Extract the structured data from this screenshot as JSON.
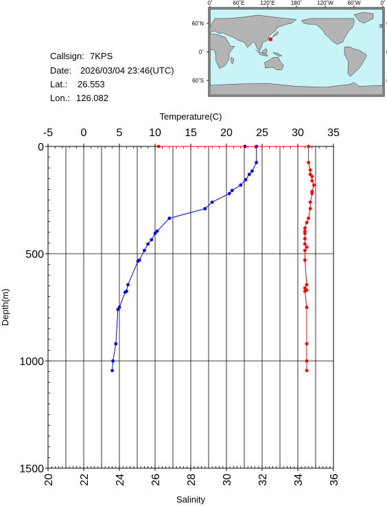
{
  "header": {
    "callsign_label": "Callsign:",
    "callsign": "7KPS",
    "date_label": "Date:",
    "date": "2026/03/04 23:46(UTC)",
    "lat_label": "Lat.:",
    "lat": "26.553",
    "lon_label": "Lon.:",
    "lon": "126.082"
  },
  "map": {
    "top_ticks": [
      "0˚",
      "60˚E",
      "120˚E",
      "180˚",
      "120˚W",
      "60˚W",
      "0˚"
    ],
    "side_ticks": [
      "60˚N",
      "0˚",
      "60˚S"
    ],
    "ocean_color": "#c8f4f8",
    "land_color": "#b4b4b4",
    "marker": {
      "lat": 26.553,
      "lon": 126.082,
      "color": "#ff0000"
    }
  },
  "chart_data": {
    "type": "line",
    "y_axis": {
      "label": "Depth(m)",
      "lim": [
        0,
        1500
      ],
      "ticks": [
        0,
        500,
        1000,
        1500
      ],
      "inverted": true
    },
    "x_axis_top": {
      "label": "Temperature(C)",
      "lim": [
        -5,
        35
      ],
      "ticks": [
        -5,
        0,
        5,
        10,
        15,
        20,
        25,
        30,
        35
      ]
    },
    "x_axis_bottom": {
      "label": "Salinity",
      "lim": [
        20,
        36
      ],
      "ticks": [
        20,
        22,
        24,
        26,
        28,
        30,
        32,
        34,
        36
      ]
    },
    "grid": true,
    "series": [
      {
        "axis": "top",
        "color": "#0000ff",
        "points": [
          [
            22.6,
            0
          ],
          [
            24.2,
            0
          ],
          [
            24.2,
            75
          ],
          [
            23.6,
            115
          ],
          [
            23.2,
            130
          ],
          [
            22.7,
            155
          ],
          [
            22.0,
            180
          ],
          [
            20.8,
            205
          ],
          [
            20.4,
            220
          ],
          [
            18.0,
            260
          ],
          [
            17.0,
            290
          ],
          [
            12.0,
            335
          ],
          [
            10.3,
            395
          ],
          [
            10.0,
            405
          ],
          [
            9.5,
            435
          ],
          [
            9.0,
            455
          ],
          [
            8.5,
            485
          ],
          [
            7.8,
            530
          ],
          [
            7.6,
            535
          ],
          [
            6.2,
            645
          ],
          [
            6.0,
            675
          ],
          [
            5.8,
            680
          ],
          [
            5.0,
            750
          ],
          [
            4.8,
            760
          ],
          [
            4.5,
            920
          ],
          [
            4.1,
            1000
          ],
          [
            4.0,
            1045
          ]
        ]
      },
      {
        "axis": "bottom",
        "color": "#ff0000",
        "points": [
          [
            26.2,
            0
          ],
          [
            34.6,
            0
          ],
          [
            34.6,
            75
          ],
          [
            34.7,
            110
          ],
          [
            34.7,
            130
          ],
          [
            34.8,
            140
          ],
          [
            34.8,
            160
          ],
          [
            34.9,
            180
          ],
          [
            34.8,
            210
          ],
          [
            34.8,
            220
          ],
          [
            34.7,
            260
          ],
          [
            34.7,
            290
          ],
          [
            34.6,
            335
          ],
          [
            34.5,
            355
          ],
          [
            34.4,
            380
          ],
          [
            34.4,
            395
          ],
          [
            34.4,
            405
          ],
          [
            34.4,
            430
          ],
          [
            34.4,
            455
          ],
          [
            34.5,
            470
          ],
          [
            34.4,
            485
          ],
          [
            34.4,
            530
          ],
          [
            34.5,
            645
          ],
          [
            34.4,
            660
          ],
          [
            34.5,
            670
          ],
          [
            34.4,
            675
          ],
          [
            34.5,
            750
          ],
          [
            34.5,
            920
          ],
          [
            34.5,
            1000
          ],
          [
            34.5,
            1045
          ]
        ]
      }
    ]
  }
}
